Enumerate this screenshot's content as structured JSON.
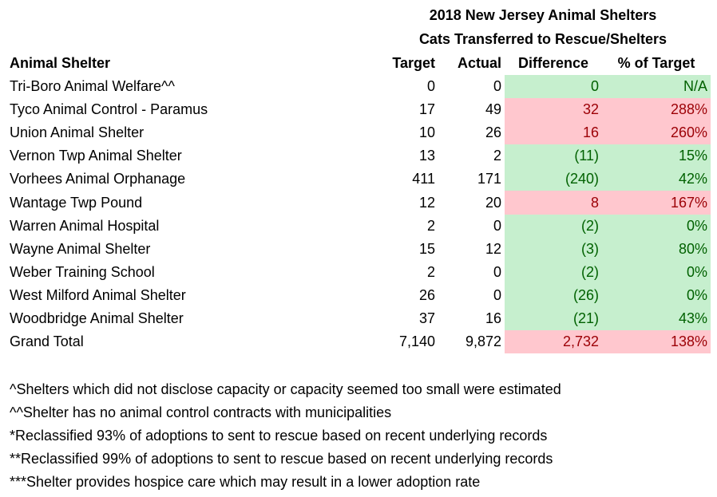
{
  "title_line1": "2018 New Jersey Animal Shelters",
  "title_line2": "Cats Transferred to Rescue/Shelters",
  "columns": [
    "Animal Shelter",
    "Target",
    "Actual",
    "Difference",
    "% of Target"
  ],
  "colors": {
    "good_fill": "#C6EFCE",
    "good_text": "#006100",
    "bad_fill": "#FFC7CE",
    "bad_text": "#9C0006"
  },
  "rows": [
    {
      "name": "Tri-Boro Animal Welfare^^",
      "target": "0",
      "actual": "0",
      "difference": "0",
      "pct": "N/A",
      "status": "good"
    },
    {
      "name": "Tyco Animal Control - Paramus",
      "target": "17",
      "actual": "49",
      "difference": "32",
      "pct": "288%",
      "status": "bad"
    },
    {
      "name": "Union Animal Shelter",
      "target": "10",
      "actual": "26",
      "difference": "16",
      "pct": "260%",
      "status": "bad"
    },
    {
      "name": "Vernon Twp Animal Shelter",
      "target": "13",
      "actual": "2",
      "difference": "(11)",
      "pct": "15%",
      "status": "good"
    },
    {
      "name": "Vorhees Animal Orphanage",
      "target": "411",
      "actual": "171",
      "difference": "(240)",
      "pct": "42%",
      "status": "good"
    },
    {
      "name": "Wantage Twp Pound",
      "target": "12",
      "actual": "20",
      "difference": "8",
      "pct": "167%",
      "status": "bad"
    },
    {
      "name": "Warren Animal Hospital",
      "target": "2",
      "actual": "0",
      "difference": "(2)",
      "pct": "0%",
      "status": "good"
    },
    {
      "name": "Wayne Animal Shelter",
      "target": "15",
      "actual": "12",
      "difference": "(3)",
      "pct": "80%",
      "status": "good"
    },
    {
      "name": "Weber Training School",
      "target": "2",
      "actual": "0",
      "difference": "(2)",
      "pct": "0%",
      "status": "good"
    },
    {
      "name": "West Milford Animal Shelter",
      "target": "26",
      "actual": "0",
      "difference": "(26)",
      "pct": "0%",
      "status": "good"
    },
    {
      "name": "Woodbridge Animal Shelter",
      "target": "37",
      "actual": "16",
      "difference": "(21)",
      "pct": "43%",
      "status": "good"
    },
    {
      "name": "Grand Total",
      "target": "7,140",
      "actual": "9,872",
      "difference": "2,732",
      "pct": "138%",
      "status": "bad"
    }
  ],
  "notes": [
    "^Shelters which did not disclose capacity or capacity seemed too small were estimated",
    "^^Shelter has no animal control contracts with municipalities",
    "*Reclassified 93% of adoptions to sent to rescue based on recent underlying records",
    "**Reclassified 99% of adoptions to sent to rescue based on recent underlying records",
    "***Shelter provides hospice care which may result in a lower adoption rate"
  ]
}
